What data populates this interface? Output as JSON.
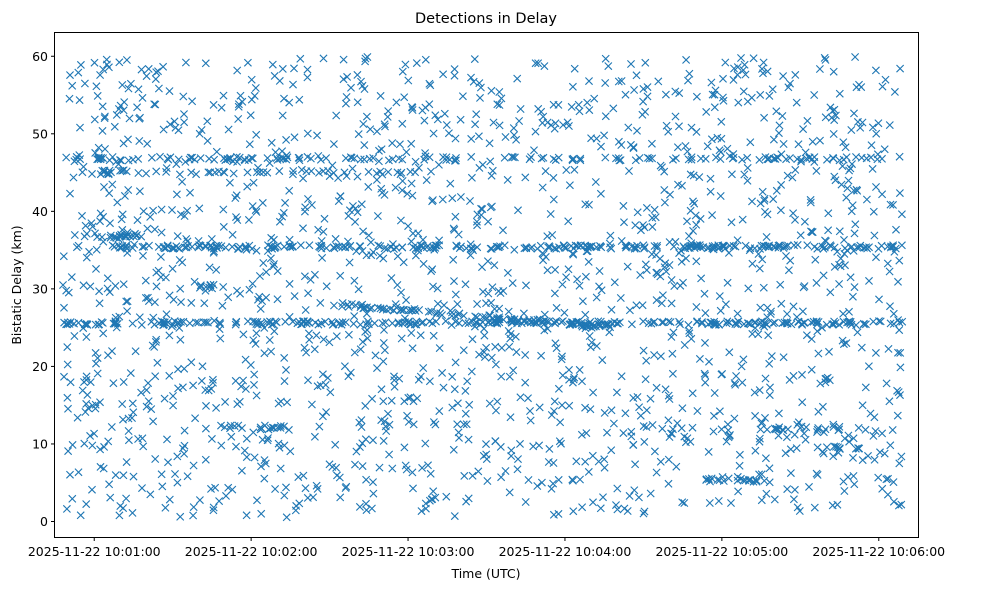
{
  "chart_data": {
    "type": "scatter",
    "title": "Detections in Delay",
    "xlabel": "Time (UTC)",
    "ylabel": "Bistatic Delay (km)",
    "marker": "x",
    "color": "#1f77b4",
    "grid": false,
    "x_range_minutes": [
      -0.25,
      5.25
    ],
    "x_data_span_minutes": [
      -0.2,
      5.15
    ],
    "ylim": [
      -2.0,
      63.0
    ],
    "xticks": [
      {
        "t": 0,
        "label": "2025-11-22 10:01:00"
      },
      {
        "t": 1,
        "label": "2025-11-22 10:02:00"
      },
      {
        "t": 2,
        "label": "2025-11-22 10:03:00"
      },
      {
        "t": 3,
        "label": "2025-11-22 10:04:00"
      },
      {
        "t": 4,
        "label": "2025-11-22 10:05:00"
      },
      {
        "t": 5,
        "label": "2025-11-22 10:06:00"
      }
    ],
    "yticks": [
      0,
      10,
      20,
      30,
      40,
      50,
      60
    ],
    "background_noise": {
      "count": 1750,
      "t_range": [
        -0.2,
        5.15
      ],
      "delay_range": [
        0.5,
        60.0
      ]
    },
    "tracks": [
      {
        "name": "constant ~25.6 km",
        "t_start": -0.2,
        "t_end": 5.15,
        "delay_start": 25.6,
        "delay_end": 25.6,
        "count": 260
      },
      {
        "name": "constant ~35.4 km",
        "t_start": 0.1,
        "t_end": 5.1,
        "delay_start": 35.4,
        "delay_end": 35.4,
        "count": 240
      },
      {
        "name": "descending 28 to 25 km",
        "t_start": 1.55,
        "t_end": 3.3,
        "delay_start": 28.0,
        "delay_end": 25.0,
        "count": 90
      },
      {
        "name": "~47 km segment A",
        "t_start": -0.15,
        "t_end": 2.0,
        "delay_start": 46.8,
        "delay_end": 46.8,
        "count": 60
      },
      {
        "name": "~47 km segment B",
        "t_start": 2.1,
        "t_end": 5.1,
        "delay_start": 46.8,
        "delay_end": 46.8,
        "count": 70
      },
      {
        "name": "~45 km segment",
        "t_start": -0.15,
        "t_end": 2.2,
        "delay_start": 45.0,
        "delay_end": 45.0,
        "count": 45
      },
      {
        "name": "~37 km segment",
        "t_start": 0.0,
        "t_end": 0.3,
        "delay_start": 36.8,
        "delay_end": 36.8,
        "count": 16
      },
      {
        "name": "~30.3 km segment",
        "t_start": 0.65,
        "t_end": 0.85,
        "delay_start": 30.3,
        "delay_end": 30.3,
        "count": 10
      },
      {
        "name": "~12 km segment A",
        "t_start": 0.75,
        "t_end": 1.3,
        "delay_start": 12.2,
        "delay_end": 12.0,
        "count": 18
      },
      {
        "name": "~12 km segment B",
        "t_start": 4.3,
        "t_end": 4.75,
        "delay_start": 12.0,
        "delay_end": 12.0,
        "count": 16
      },
      {
        "name": "~5.3 km segment",
        "t_start": 3.9,
        "t_end": 4.25,
        "delay_start": 5.4,
        "delay_end": 5.2,
        "count": 18
      },
      {
        "name": "~9.5 km segment",
        "t_start": 4.6,
        "t_end": 4.9,
        "delay_start": 9.5,
        "delay_end": 9.5,
        "count": 10
      }
    ]
  }
}
